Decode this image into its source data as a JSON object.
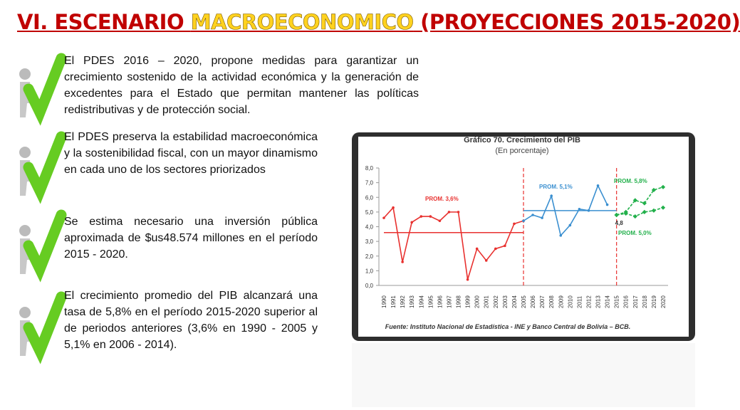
{
  "header": {
    "title": {
      "part1": "VI. ESCENARIO ",
      "part2": "MACROECONOMICO",
      "part3": " (PROYECCIONES 2015-2020)"
    }
  },
  "bullets": [
    "El PDES 2016 – 2020, propone medidas para garantizar un crecimiento sostenido de la actividad económica y la generación de excedentes para el Estado que permitan mantener las políticas redistributivas y de protección social.",
    "El PDES preserva la estabilidad macroeconómica y la sostenibilidad fiscal, con un mayor dinamismo en cada uno de los sectores priorizados",
    "Se estima necesario una inversión pública aproximada de $us48.574 millones en el período 2015 - 2020.",
    "El crecimiento promedio del PIB alcanzará una tasa de 5,8% en el período 2015-2020 superior al de periodos anteriores (3,6% en 1990 - 2005 y 5,1% en 2006 - 2014)."
  ],
  "chart_data": {
    "type": "line",
    "title": "Gráfico 70. Crecimiento del PIB",
    "subtitle": "(En porcentaje)",
    "source": "Fuente: Instituto Nacional de Estadística - INE y Banco Central de Bolivia – BCB.",
    "categories": [
      "1990",
      "1991",
      "1992",
      "1993",
      "1994",
      "1995",
      "1996",
      "1997",
      "1998",
      "1999",
      "2000",
      "2001",
      "2002",
      "2003",
      "2004",
      "2005",
      "2006",
      "2007",
      "2008",
      "2009",
      "2010",
      "2011",
      "2012",
      "2013",
      "2014",
      "2015",
      "2016",
      "2017",
      "2018",
      "2019",
      "2020"
    ],
    "series": [
      {
        "color": "#e8312f",
        "dashed": false,
        "values": [
          4.6,
          5.3,
          1.6,
          4.3,
          4.7,
          4.7,
          4.4,
          5.0,
          5.0,
          0.4,
          2.5,
          1.7,
          2.5,
          2.7,
          4.2,
          4.4,
          null,
          null,
          null,
          null,
          null,
          null,
          null,
          null,
          null,
          null,
          null,
          null,
          null,
          null,
          null
        ]
      },
      {
        "color": "#3a8fd0",
        "dashed": false,
        "values": [
          null,
          null,
          null,
          null,
          null,
          null,
          null,
          null,
          null,
          null,
          null,
          null,
          null,
          null,
          null,
          4.4,
          4.8,
          4.6,
          6.1,
          3.4,
          4.1,
          5.2,
          5.1,
          6.8,
          5.5,
          null,
          null,
          null,
          null,
          null,
          null
        ]
      },
      {
        "color": "#22b04b",
        "dashed": true,
        "values": [
          null,
          null,
          null,
          null,
          null,
          null,
          null,
          null,
          null,
          null,
          null,
          null,
          null,
          null,
          null,
          null,
          null,
          null,
          null,
          null,
          null,
          null,
          null,
          null,
          null,
          4.8,
          5.0,
          5.8,
          5.6,
          6.5,
          6.7
        ]
      },
      {
        "color": "#22b04b",
        "dashed": true,
        "values": [
          null,
          null,
          null,
          null,
          null,
          null,
          null,
          null,
          null,
          null,
          null,
          null,
          null,
          null,
          null,
          null,
          null,
          null,
          null,
          null,
          null,
          null,
          null,
          null,
          null,
          4.8,
          4.9,
          4.7,
          5.0,
          5.1,
          5.3
        ],
        "value_labels": [
          null,
          null,
          null,
          null,
          null,
          null,
          null,
          null,
          null,
          null,
          null,
          null,
          null,
          null,
          null,
          null,
          null,
          null,
          null,
          null,
          null,
          null,
          null,
          null,
          null,
          "4,8",
          null,
          null,
          null,
          null,
          null
        ]
      }
    ],
    "averages": [
      {
        "value": 3.6,
        "label": "PROM. 3,6%",
        "color": "#e8312f",
        "from": "1990",
        "to": "2005"
      },
      {
        "value": 5.1,
        "label": "PROM. 5,1%",
        "color": "#3a8fd0",
        "from": "2005",
        "to": "2015"
      },
      {
        "value": 5.8,
        "label": "PROM. 5,8%",
        "color": "#22b04b"
      },
      {
        "value": 5.0,
        "label": "PROM. 5,0%",
        "color": "#22b04b"
      }
    ],
    "dividers": [
      "2005",
      "2015"
    ],
    "ylim": [
      0,
      8
    ],
    "yticks": [
      {
        "value": 0,
        "label": "0,0"
      },
      {
        "value": 1,
        "label": "1,0"
      },
      {
        "value": 2,
        "label": "2,0"
      },
      {
        "value": 3,
        "label": "3,0"
      },
      {
        "value": 4,
        "label": "4,0"
      },
      {
        "value": 5,
        "label": "5,0"
      },
      {
        "value": 6,
        "label": "6,0"
      },
      {
        "value": 7,
        "label": "7,0"
      },
      {
        "value": 8,
        "label": "8,0"
      }
    ]
  }
}
